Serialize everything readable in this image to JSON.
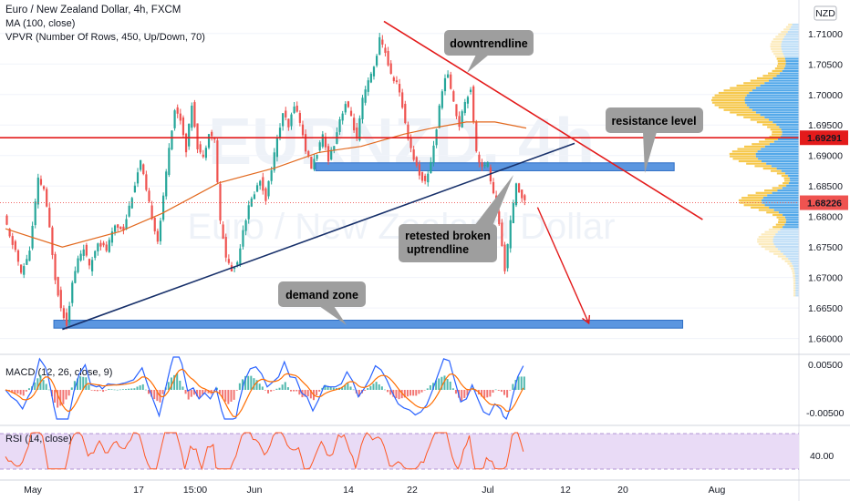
{
  "header": {
    "title": "Euro / New Zealand Dollar, 4h, FXCM",
    "indicator_ma": "MA (100, close)",
    "indicator_vpvr": "VPVR (Number Of Rows, 450, Up/Down, 70)"
  },
  "watermark": {
    "ticker": "EURNZD, 4h",
    "name": "Euro / New Zealand Dollar"
  },
  "currency_badge": "NZD",
  "annotations": {
    "downtrend": "downtrendline",
    "resistance": "resistance level",
    "retest_line1": "retested broken",
    "retest_line2": "uptrendline",
    "demand": "demand zone"
  },
  "price_tags": {
    "level": "1.69291",
    "last": "1.68226"
  },
  "macd": {
    "label": "MACD (12, 26, close, 9)",
    "ticks": [
      "0.00500",
      "-0.00500"
    ]
  },
  "rsi": {
    "label": "RSI (14, close)",
    "ticks": [
      "40.00"
    ]
  },
  "colors": {
    "bull": "#26a69a",
    "bear": "#ef5350",
    "ma": "#e2691f",
    "trendline_up": "#17306a",
    "trendline_down": "#e31b1b",
    "resistance_line": "#e31b1b",
    "zone_fill": "#5b96e0",
    "vp_up": "#4aa3e8",
    "vp_down": "#f5c542",
    "macd_line": "#2962ff",
    "signal_line": "#ff6d00",
    "rsi_line": "#ff5722",
    "rsi_band": "#e9dbf6",
    "label_box": "#9e9e9e"
  },
  "chart_data": {
    "type": "candlestick",
    "title": "Euro / New Zealand Dollar, 4h, FXCM",
    "y_axis_ticks": [
      "1.71000",
      "1.70500",
      "1.70000",
      "1.69500",
      "1.69000",
      "1.68500",
      "1.68000",
      "1.67500",
      "1.67000",
      "1.66500",
      "1.66000"
    ],
    "ylim": [
      1.658,
      1.714
    ],
    "x_axis_ticks": [
      "May",
      "17",
      "15:00",
      "Jun",
      "14",
      "22",
      "Jul",
      "12",
      "20",
      "Aug"
    ],
    "price_path": [
      {
        "t": 0,
        "p": 1.68
      },
      {
        "t": 2,
        "p": 1.6765
      },
      {
        "t": 4,
        "p": 1.6745
      },
      {
        "t": 6,
        "p": 1.6705
      },
      {
        "t": 9,
        "p": 1.6745
      },
      {
        "t": 12,
        "p": 1.686
      },
      {
        "t": 14,
        "p": 1.6845
      },
      {
        "t": 16,
        "p": 1.678
      },
      {
        "t": 18,
        "p": 1.67
      },
      {
        "t": 20,
        "p": 1.665
      },
      {
        "t": 22,
        "p": 1.6625
      },
      {
        "t": 24,
        "p": 1.669
      },
      {
        "t": 26,
        "p": 1.673
      },
      {
        "t": 28,
        "p": 1.675
      },
      {
        "t": 30,
        "p": 1.6715
      },
      {
        "t": 33,
        "p": 1.676
      },
      {
        "t": 36,
        "p": 1.6745
      },
      {
        "t": 39,
        "p": 1.6785
      },
      {
        "t": 42,
        "p": 1.678
      },
      {
        "t": 45,
        "p": 1.6835
      },
      {
        "t": 48,
        "p": 1.689
      },
      {
        "t": 50,
        "p": 1.684
      },
      {
        "t": 52,
        "p": 1.68
      },
      {
        "t": 54,
        "p": 1.676
      },
      {
        "t": 56,
        "p": 1.683
      },
      {
        "t": 58,
        "p": 1.6915
      },
      {
        "t": 60,
        "p": 1.6975
      },
      {
        "t": 62,
        "p": 1.696
      },
      {
        "t": 64,
        "p": 1.691
      },
      {
        "t": 66,
        "p": 1.6985
      },
      {
        "t": 68,
        "p": 1.6915
      },
      {
        "t": 70,
        "p": 1.6895
      },
      {
        "t": 72,
        "p": 1.694
      },
      {
        "t": 74,
        "p": 1.6925
      },
      {
        "t": 76,
        "p": 1.679
      },
      {
        "t": 78,
        "p": 1.6735
      },
      {
        "t": 80,
        "p": 1.671
      },
      {
        "t": 82,
        "p": 1.6725
      },
      {
        "t": 84,
        "p": 1.678
      },
      {
        "t": 86,
        "p": 1.6815
      },
      {
        "t": 88,
        "p": 1.684
      },
      {
        "t": 90,
        "p": 1.686
      },
      {
        "t": 92,
        "p": 1.683
      },
      {
        "t": 94,
        "p": 1.688
      },
      {
        "t": 96,
        "p": 1.6925
      },
      {
        "t": 98,
        "p": 1.697
      },
      {
        "t": 100,
        "p": 1.6945
      },
      {
        "t": 102,
        "p": 1.6985
      },
      {
        "t": 104,
        "p": 1.6955
      },
      {
        "t": 106,
        "p": 1.691
      },
      {
        "t": 108,
        "p": 1.688
      },
      {
        "t": 110,
        "p": 1.6905
      },
      {
        "t": 112,
        "p": 1.693
      },
      {
        "t": 114,
        "p": 1.6895
      },
      {
        "t": 116,
        "p": 1.692
      },
      {
        "t": 118,
        "p": 1.696
      },
      {
        "t": 120,
        "p": 1.6985
      },
      {
        "t": 122,
        "p": 1.6965
      },
      {
        "t": 124,
        "p": 1.6925
      },
      {
        "t": 126,
        "p": 1.699
      },
      {
        "t": 128,
        "p": 1.702
      },
      {
        "t": 130,
        "p": 1.7045
      },
      {
        "t": 132,
        "p": 1.709
      },
      {
        "t": 134,
        "p": 1.707
      },
      {
        "t": 136,
        "p": 1.703
      },
      {
        "t": 138,
        "p": 1.702
      },
      {
        "t": 140,
        "p": 1.698
      },
      {
        "t": 142,
        "p": 1.693
      },
      {
        "t": 144,
        "p": 1.6895
      },
      {
        "t": 146,
        "p": 1.687
      },
      {
        "t": 148,
        "p": 1.6855
      },
      {
        "t": 150,
        "p": 1.689
      },
      {
        "t": 152,
        "p": 1.6945
      },
      {
        "t": 154,
        "p": 1.701
      },
      {
        "t": 156,
        "p": 1.7035
      },
      {
        "t": 158,
        "p": 1.6985
      },
      {
        "t": 160,
        "p": 1.695
      },
      {
        "t": 162,
        "p": 1.699
      },
      {
        "t": 164,
        "p": 1.701
      },
      {
        "t": 166,
        "p": 1.6905
      },
      {
        "t": 168,
        "p": 1.688
      },
      {
        "t": 170,
        "p": 1.6885
      },
      {
        "t": 172,
        "p": 1.6835
      },
      {
        "t": 174,
        "p": 1.6785
      },
      {
        "t": 176,
        "p": 1.6715
      },
      {
        "t": 178,
        "p": 1.679
      },
      {
        "t": 180,
        "p": 1.685
      },
      {
        "t": 182,
        "p": 1.6835
      },
      {
        "t": 183,
        "p": 1.6822
      }
    ],
    "ma_100": [
      {
        "t": 0,
        "p": 1.678
      },
      {
        "t": 20,
        "p": 1.675
      },
      {
        "t": 40,
        "p": 1.6775
      },
      {
        "t": 55,
        "p": 1.6805
      },
      {
        "t": 75,
        "p": 1.6855
      },
      {
        "t": 95,
        "p": 1.688
      },
      {
        "t": 110,
        "p": 1.6905
      },
      {
        "t": 125,
        "p": 1.6915
      },
      {
        "t": 140,
        "p": 1.6935
      },
      {
        "t": 150,
        "p": 1.6945
      },
      {
        "t": 162,
        "p": 1.6955
      },
      {
        "t": 172,
        "p": 1.6955
      },
      {
        "t": 183,
        "p": 1.6945
      }
    ],
    "lines": {
      "resistance": 1.69291,
      "last_price": 1.68226,
      "uptrend": [
        {
          "t": 20,
          "p": 1.6615
        },
        {
          "t": 200,
          "p": 1.692
        }
      ],
      "downtrend": [
        {
          "t": 133,
          "p": 1.712
        },
        {
          "t": 245,
          "p": 1.6795
        }
      ],
      "projection": [
        {
          "t": 187,
          "p": 1.6815
        },
        {
          "t": 205,
          "p": 1.6625
        }
      ]
    },
    "zones": {
      "resistance_zone": [
        1.6875,
        1.6888
      ],
      "demand_zone": [
        1.6617,
        1.663
      ]
    },
    "zone_extent": {
      "resistance_zone": [
        109,
        235
      ],
      "demand_zone": [
        17,
        238
      ]
    }
  }
}
